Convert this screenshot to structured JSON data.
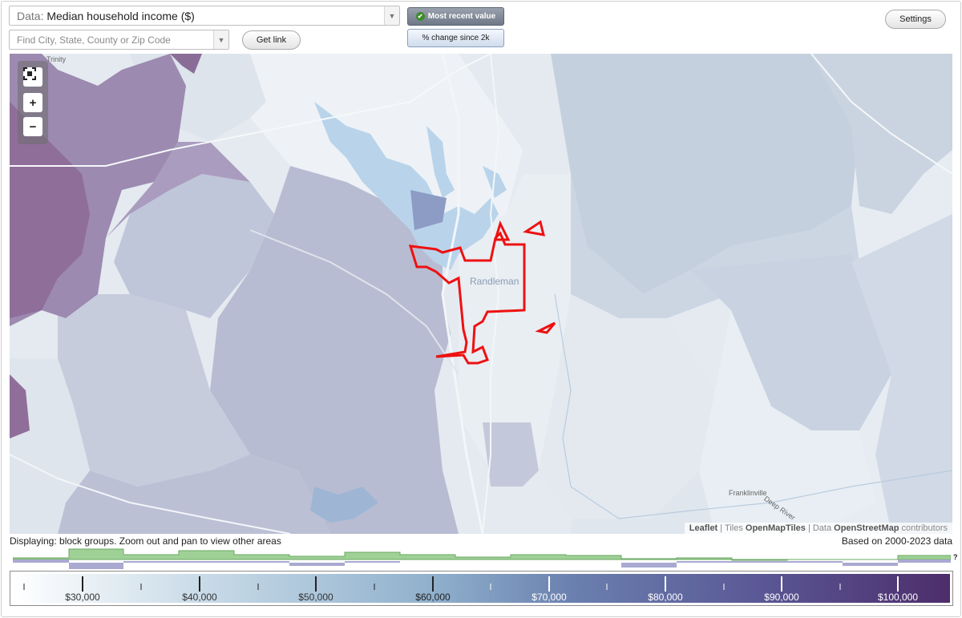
{
  "controls": {
    "data_prefix": "Data:",
    "data_value": "Median household income ($)",
    "search_placeholder": "Find City, State, County or Zip Code",
    "get_link": "Get link",
    "toggle_recent": "Most recent value",
    "toggle_change": "% change since 2k",
    "settings": "Settings"
  },
  "map": {
    "places": [
      "Trinity",
      "Randleman",
      "Franklinville",
      "Deep River"
    ],
    "attribution": {
      "leaflet": "Leaflet",
      "tiles_prefix": "| Tiles",
      "tiles": "OpenMapTiles",
      "data_prefix": "| Data",
      "data": "OpenStreetMap",
      "suffix": "contributors"
    }
  },
  "footer": {
    "displaying": "Displaying: block groups. Zoom out and pan to view other areas",
    "based_on": "Based on 2000-2023 data",
    "histogram_unknown": "?"
  },
  "legend": {
    "labels": [
      "$30,000",
      "$40,000",
      "$50,000",
      "$60,000",
      "$70,000",
      "$80,000",
      "$90,000",
      "$100,000"
    ],
    "gradient_colors": [
      "#ffffff",
      "#c9dbe8",
      "#8fb0cc",
      "#6a7fae",
      "#5a5795",
      "#4d2d6b"
    ]
  }
}
